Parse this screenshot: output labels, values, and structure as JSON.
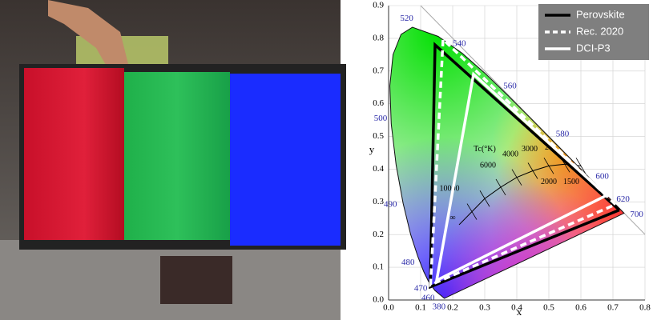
{
  "chart_data": {
    "type": "gamut",
    "x_label": "x",
    "y_label": "y",
    "xlim": [
      0,
      0.8
    ],
    "ylim": [
      0,
      0.9
    ],
    "xticks": [
      {
        "value": 0,
        "label": "0.0"
      },
      {
        "value": 0.1,
        "label": "0.1"
      },
      {
        "value": 0.2,
        "label": "0.2"
      },
      {
        "value": 0.3,
        "label": "0.3"
      },
      {
        "value": 0.4,
        "label": "0.4"
      },
      {
        "value": 0.5,
        "label": "0.5"
      },
      {
        "value": 0.6,
        "label": "0.6"
      },
      {
        "value": 0.7,
        "label": "0.7"
      },
      {
        "value": 0.8,
        "label": "0.8"
      }
    ],
    "yticks": [
      {
        "value": 0,
        "label": "0.0"
      },
      {
        "value": 0.1,
        "label": "0.1"
      },
      {
        "value": 0.2,
        "label": "0.2"
      },
      {
        "value": 0.3,
        "label": "0.3"
      },
      {
        "value": 0.4,
        "label": "0.4"
      },
      {
        "value": 0.5,
        "label": "0.5"
      },
      {
        "value": 0.6,
        "label": "0.6"
      },
      {
        "value": 0.7,
        "label": "0.7"
      },
      {
        "value": 0.8,
        "label": "0.8"
      },
      {
        "value": 0.9,
        "label": "0.9"
      }
    ],
    "grid": true,
    "legend": "upper right",
    "spectral_locus": {
      "x": [
        0.1741,
        0.144,
        0.1241,
        0.1096,
        0.0913,
        0.0687,
        0.0454,
        0.0235,
        0.0082,
        0.0039,
        0.0139,
        0.0389,
        0.0743,
        0.1547,
        0.2296,
        0.3016,
        0.3731,
        0.4441,
        0.5125,
        0.5752,
        0.627,
        0.6658,
        0.6915,
        0.719,
        0.7347
      ],
      "y": [
        0.005,
        0.0297,
        0.0578,
        0.0868,
        0.1327,
        0.2007,
        0.295,
        0.4127,
        0.5384,
        0.6548,
        0.7502,
        0.812,
        0.8338,
        0.8059,
        0.7543,
        0.6923,
        0.6245,
        0.5547,
        0.4866,
        0.4242,
        0.3725,
        0.334,
        0.3083,
        0.2809,
        0.2653
      ]
    },
    "wavelength_labels": [
      {
        "label": "380",
        "x": 0.1741,
        "y": 0.005
      },
      {
        "label": "460",
        "x": 0.144,
        "y": 0.0297
      },
      {
        "label": "470",
        "x": 0.1241,
        "y": 0.0578
      },
      {
        "label": "480",
        "x": 0.0913,
        "y": 0.1327
      },
      {
        "label": "490",
        "x": 0.0454,
        "y": 0.295
      },
      {
        "label": "500",
        "x": 0.0082,
        "y": 0.5384
      },
      {
        "label": "520",
        "x": 0.0743,
        "y": 0.8338
      },
      {
        "label": "540",
        "x": 0.2296,
        "y": 0.7543
      },
      {
        "label": "560",
        "x": 0.3731,
        "y": 0.6245
      },
      {
        "label": "580",
        "x": 0.5125,
        "y": 0.4866
      },
      {
        "label": "600",
        "x": 0.627,
        "y": 0.3725
      },
      {
        "label": "620",
        "x": 0.6915,
        "y": 0.3083
      },
      {
        "label": "700",
        "x": 0.7347,
        "y": 0.2653
      }
    ],
    "planckian_locus": {
      "x": [
        0.22,
        0.26,
        0.3,
        0.35,
        0.4,
        0.45,
        0.5,
        0.55,
        0.6
      ],
      "y": [
        0.23,
        0.27,
        0.31,
        0.345,
        0.375,
        0.395,
        0.41,
        0.415,
        0.41
      ]
    },
    "annotations": [
      {
        "text": "Tc(°K)",
        "x": 0.3,
        "y": 0.46
      },
      {
        "text": "10000",
        "x": 0.19,
        "y": 0.34
      },
      {
        "text": "6000",
        "x": 0.31,
        "y": 0.41
      },
      {
        "text": "4000",
        "x": 0.38,
        "y": 0.445
      },
      {
        "text": "3000",
        "x": 0.44,
        "y": 0.46
      },
      {
        "text": "25",
        "x": 0.5,
        "y": 0.465
      },
      {
        "text": "2000",
        "x": 0.5,
        "y": 0.36
      },
      {
        "text": "1500",
        "x": 0.57,
        "y": 0.36
      },
      {
        "text": "∞",
        "x": 0.2,
        "y": 0.25
      }
    ],
    "series": [
      {
        "name": "Perovskite",
        "color": "#000000",
        "line_style": "solid",
        "x": [
          0.72,
          0.145,
          0.13,
          0.72
        ],
        "y": [
          0.275,
          0.78,
          0.04,
          0.275
        ]
      },
      {
        "name": "Rec. 2020",
        "color": "#ffffff",
        "line_style": "dashed",
        "x": [
          0.708,
          0.17,
          0.131,
          0.708
        ],
        "y": [
          0.292,
          0.797,
          0.046,
          0.292
        ]
      },
      {
        "name": "DCI-P3",
        "color": "#ffffff",
        "line_style": "solid",
        "x": [
          0.68,
          0.265,
          0.15,
          0.68
        ],
        "y": [
          0.32,
          0.69,
          0.06,
          0.32
        ]
      }
    ]
  }
}
